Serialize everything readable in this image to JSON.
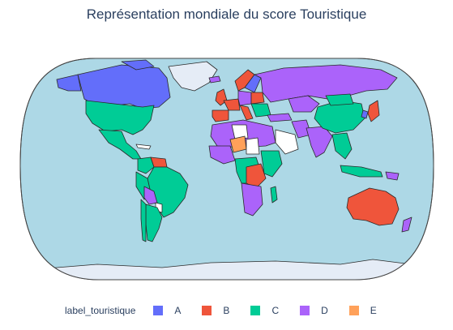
{
  "title": "Représentation mondiale du score Touristique",
  "legend": {
    "title": "label_touristique",
    "items": [
      {
        "label": "A",
        "color": "#636efa"
      },
      {
        "label": "B",
        "color": "#ef553b"
      },
      {
        "label": "C",
        "color": "#00cc96"
      },
      {
        "label": "D",
        "color": "#ab63fa"
      },
      {
        "label": "E",
        "color": "#ffa15a"
      }
    ]
  },
  "colors": {
    "ocean": "#add8e6",
    "no_data_land": "#ffffff",
    "ice": "#e5ecf6",
    "border": "#2a2a2a",
    "text": "#2a3f5f"
  },
  "map_data": {
    "type": "choropleth",
    "projection": "natural earth",
    "regions": [
      {
        "name": "Canada",
        "label": "A"
      },
      {
        "name": "Russia",
        "label": "D"
      },
      {
        "name": "United States",
        "label": "C"
      },
      {
        "name": "Mexico",
        "label": "C"
      },
      {
        "name": "Brazil",
        "label": "C"
      },
      {
        "name": "Argentina",
        "label": "C"
      },
      {
        "name": "Australia",
        "label": "B"
      },
      {
        "name": "China",
        "label": "C"
      },
      {
        "name": "India",
        "label": "D"
      },
      {
        "name": "Niger",
        "label": "E"
      },
      {
        "name": "DR Congo",
        "label": "B"
      },
      {
        "name": "Japan",
        "label": "B"
      },
      {
        "name": "Spain",
        "label": "B"
      },
      {
        "name": "Italy",
        "label": "B"
      }
    ]
  }
}
